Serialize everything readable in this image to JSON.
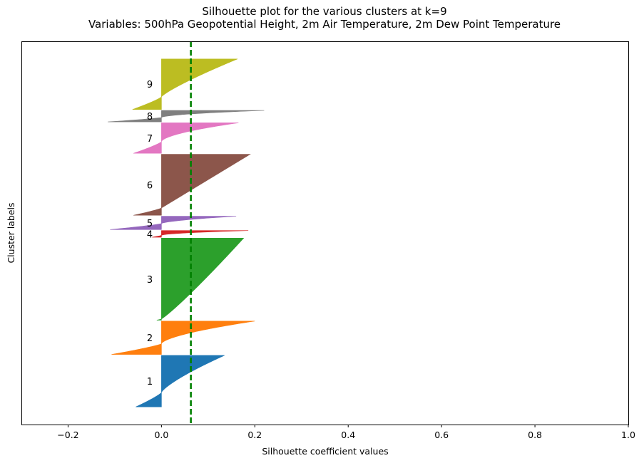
{
  "chart_data": {
    "type": "area",
    "title": "Silhouette plot for the various clusters at k=9",
    "subtitle": "Variables: 500hPa Geopotential Height, 2m Air Temperature, 2m Dew Point Temperature",
    "xlabel": "Silhouette coefficient values",
    "ylabel": "Cluster labels",
    "xlim": [
      -0.3,
      1.0
    ],
    "xticks": [
      -0.2,
      0.0,
      0.2,
      0.4,
      0.6,
      0.8,
      1.0
    ],
    "xtick_labels": [
      "−0.2",
      "0.0",
      "0.2",
      "0.4",
      "0.6",
      "0.8",
      "1.0"
    ],
    "average_silhouette": 0.063,
    "average_line_color": "#008000",
    "grid": false,
    "clusters": [
      {
        "label": "1",
        "color": "#1f77b4",
        "size": 108,
        "max": 0.135,
        "min": -0.055,
        "zero_frac": 0.72,
        "curve": 1.3
      },
      {
        "label": "2",
        "color": "#ff7f0e",
        "size": 70,
        "max": 0.2,
        "min": -0.107,
        "zero_frac": 0.68,
        "curve": 1.6
      },
      {
        "label": "3",
        "color": "#2ca02c",
        "size": 172,
        "max": 0.176,
        "min": -0.01,
        "zero_frac": 0.985,
        "curve": 0.9
      },
      {
        "label": "4",
        "color": "#d62728",
        "size": 14,
        "max": 0.186,
        "min": -0.02,
        "zero_frac": 0.72,
        "curve": 1.8
      },
      {
        "label": "5",
        "color": "#9467bd",
        "size": 28,
        "max": 0.16,
        "min": -0.11,
        "zero_frac": 0.55,
        "curve": 1.6
      },
      {
        "label": "6",
        "color": "#8c564b",
        "size": 128,
        "max": 0.19,
        "min": -0.06,
        "zero_frac": 0.88,
        "curve": 1.0
      },
      {
        "label": "7",
        "color": "#e377c2",
        "size": 64,
        "max": 0.165,
        "min": -0.06,
        "zero_frac": 0.62,
        "curve": 1.7
      },
      {
        "label": "8",
        "color": "#7f7f7f",
        "size": 24,
        "max": 0.22,
        "min": -0.115,
        "zero_frac": 0.62,
        "curve": 1.8
      },
      {
        "label": "9",
        "color": "#bcbd22",
        "size": 106,
        "max": 0.163,
        "min": -0.062,
        "zero_frac": 0.75,
        "curve": 1.2
      }
    ],
    "cluster_gap": 2,
    "y_start_pad": 37
  }
}
